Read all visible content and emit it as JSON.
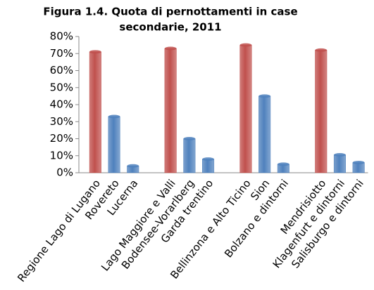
{
  "chart_data": {
    "type": "bar",
    "title": [
      "Figura 1.4. Quota di pernottamenti in case",
      "secondarie, 2011"
    ],
    "categories": [
      "Regione Lago di Lugano",
      "Rovereto",
      "Lucerna",
      null,
      "Lago Maggiore e Valli",
      "Bodensee-Vorarlberg",
      "Garda trentino",
      null,
      "Bellinzona e Alto Ticino",
      "Sion",
      "Bolzano e dintorni",
      null,
      "Mendrisiotto",
      "Klagenfurt e dintorni",
      "Salisburgo e dintorni"
    ],
    "values": [
      71,
      33,
      4,
      null,
      73,
      20,
      8,
      null,
      75,
      45,
      5,
      null,
      72,
      10.5,
      6
    ],
    "colors": [
      "#c0504d",
      "#4f81bd",
      "#4f81bd",
      null,
      "#c0504d",
      "#4f81bd",
      "#4f81bd",
      null,
      "#c0504d",
      "#4f81bd",
      "#4f81bd",
      null,
      "#c0504d",
      "#4f81bd",
      "#4f81bd"
    ],
    "ylim": [
      0,
      80
    ],
    "yticks": [
      {
        "value": 0,
        "label": "0%"
      },
      {
        "value": 10,
        "label": "10%"
      },
      {
        "value": 20,
        "label": "20%"
      },
      {
        "value": 30,
        "label": "30%"
      },
      {
        "value": 40,
        "label": "40%"
      },
      {
        "value": 50,
        "label": "50%"
      },
      {
        "value": 60,
        "label": "60%"
      },
      {
        "value": 70,
        "label": "70%"
      },
      {
        "value": 80,
        "label": "80%"
      }
    ],
    "grid": false
  }
}
